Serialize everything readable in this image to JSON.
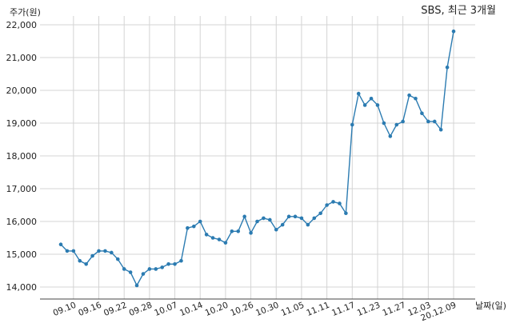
{
  "chart_data": {
    "type": "line",
    "title": "SBS, 최근 3개월",
    "ylabel": "주가(원)",
    "xlabel": "날짜(일)",
    "ylim": [
      13600,
      22300
    ],
    "yticks": [
      14000,
      15000,
      16000,
      17000,
      18000,
      19000,
      20000,
      21000,
      22000
    ],
    "ytick_labels": [
      "14,000",
      "15,000",
      "16,000",
      "17,000",
      "18,000",
      "19,000",
      "20,000",
      "21,000",
      "22,000"
    ],
    "xtick_labels": [
      "09.10",
      "09.16",
      "09.22",
      "09.28",
      "10.07",
      "10.14",
      "10.20",
      "10.26",
      "10.30",
      "11.05",
      "11.11",
      "11.17",
      "11.23",
      "11.27",
      "12.03",
      "20.12.09"
    ],
    "xtick_point_index": [
      2,
      6,
      10,
      14,
      18,
      22,
      26,
      30,
      34,
      38,
      42,
      46,
      50,
      54,
      58,
      62
    ],
    "grid": true,
    "color": "#2b7bb1",
    "series": [
      {
        "values": [
          15300,
          15100,
          15100,
          14800,
          14700,
          14950,
          15100,
          15100,
          15050,
          14850,
          14550,
          14450,
          14050,
          14400,
          14550,
          14550,
          14600,
          14700,
          14700,
          14800,
          15800,
          15850,
          16000,
          15600,
          15500,
          15450,
          15350,
          15700,
          15700,
          16150,
          15650,
          16000,
          16100,
          16050,
          15750,
          15900,
          16150,
          16150,
          16100,
          15900,
          16100,
          16250,
          16500,
          16600,
          16550,
          16250,
          18950,
          19900,
          19550,
          19750,
          19550,
          19000,
          18600,
          18950,
          19050,
          19850,
          19750,
          19300,
          19050,
          19050,
          18800,
          20700,
          21800
        ]
      }
    ]
  }
}
